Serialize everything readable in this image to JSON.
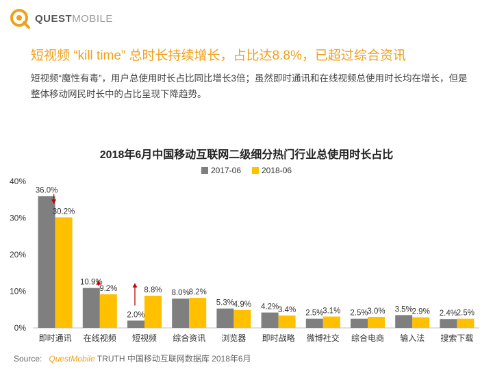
{
  "brand": {
    "name_bold": "QUEST",
    "name_light": "MOBILE"
  },
  "headline": "短视频 “kill time” 总时长持续增长，占比达8.8%，已超过综合资讯",
  "summary": "短视频“魔性有毒”，用户总使用时长占比同比增长3倍；虽然即时通讯和在线视频总使用时长均在增长，但是整体移动网民时长中的占比呈现下降趋势。",
  "source": {
    "label": "Source:",
    "brand": "QuestMobile",
    "text": "TRUTH 中国移动互联网数据库 2018年6月"
  },
  "colors": {
    "series_2017": "#7f7f7f",
    "series_2018": "#ffc000",
    "accent": "#f0a018",
    "arrow": "#c00000"
  },
  "chart_data": {
    "type": "bar",
    "title": "2018年6月中国移动互联网二级细分热门行业总使用时长占比",
    "categories": [
      "即时通讯",
      "在线视频",
      "短视频",
      "综合资讯",
      "浏览器",
      "即时战略",
      "微博社交",
      "综合电商",
      "输入法",
      "搜索下载"
    ],
    "series": [
      {
        "name": "2017-06",
        "values": [
          36.0,
          10.9,
          2.0,
          8.0,
          5.3,
          4.2,
          2.5,
          2.5,
          3.5,
          2.4
        ],
        "labels": [
          "36.0%",
          "10.9%",
          "2.0%",
          "8.0%",
          "5.3%",
          "4.2%",
          "2.5%",
          "2.5%",
          "3.5%",
          "2.4%"
        ]
      },
      {
        "name": "2018-06",
        "values": [
          30.2,
          9.2,
          8.8,
          8.2,
          4.9,
          3.4,
          3.1,
          3.0,
          2.9,
          2.5
        ],
        "labels": [
          "30.2%",
          "9.2%",
          "8.8%",
          "8.2%",
          "4.9%",
          "3.4%",
          "3.1%",
          "3.0%",
          "2.9%",
          "2.5%"
        ]
      }
    ],
    "ylim": [
      0,
      40
    ],
    "yticks": [
      "0%",
      "10%",
      "20%",
      "30%",
      "40%"
    ],
    "ytick_values": [
      0,
      10,
      20,
      30,
      40
    ],
    "grid": false,
    "legend_position": "top-center",
    "annotations": [
      {
        "category": "即时通讯",
        "direction": "down"
      },
      {
        "category": "在线视频",
        "direction": "down"
      },
      {
        "category": "短视频",
        "direction": "up"
      }
    ]
  }
}
